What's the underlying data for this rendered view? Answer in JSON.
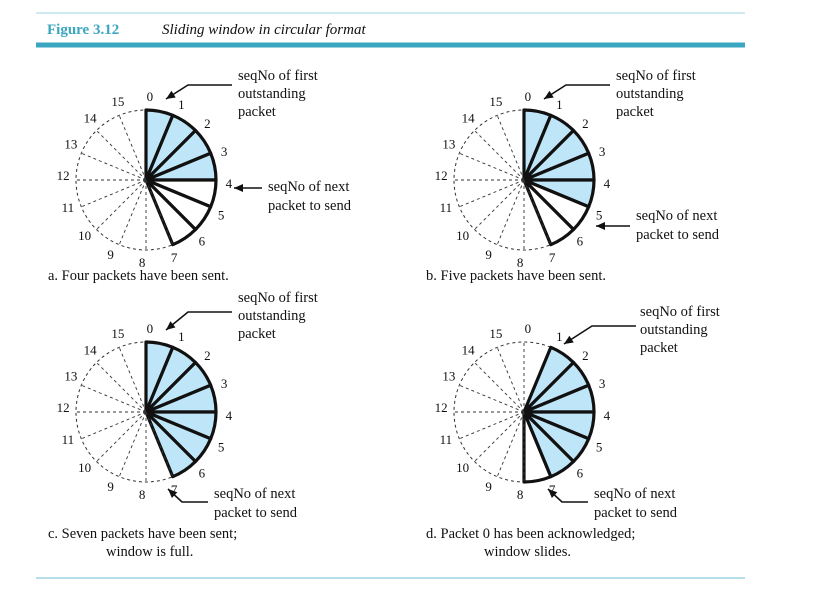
{
  "figure": {
    "label": "Figure 3.12",
    "title": "Sliding window in circular format"
  },
  "colors": {
    "accent": "#3aa6c0",
    "fill": "#bfe6f8"
  },
  "sequence_numbers": [
    "0",
    "1",
    "2",
    "3",
    "4",
    "5",
    "6",
    "7",
    "8",
    "9",
    "10",
    "11",
    "12",
    "13",
    "14",
    "15"
  ],
  "panels": [
    {
      "id": "a",
      "window_start": 0,
      "window_size": 7,
      "acknowledged_free": [],
      "sent_outstanding": [
        0,
        1,
        2,
        3
      ],
      "first_label": [
        "seqNo of first",
        "outstanding",
        "packet"
      ],
      "next_label": [
        "seqNo of next",
        "packet to send"
      ],
      "caption": [
        "a. Four packets have been sent."
      ]
    },
    {
      "id": "b",
      "window_start": 0,
      "window_size": 7,
      "sent_outstanding": [
        0,
        1,
        2,
        3,
        4
      ],
      "first_label": [
        "seqNo of first",
        "outstanding",
        "packet"
      ],
      "next_label": [
        "seqNo of next",
        "packet to send"
      ],
      "caption": [
        "b. Five packets have been sent."
      ]
    },
    {
      "id": "c",
      "window_start": 0,
      "window_size": 7,
      "sent_outstanding": [
        0,
        1,
        2,
        3,
        4,
        5,
        6
      ],
      "first_label": [
        "seqNo of first",
        "outstanding",
        "packet"
      ],
      "next_label": [
        "seqNo of next",
        "packet to send"
      ],
      "caption": [
        "c. Seven packets have been sent;",
        "window is full."
      ]
    },
    {
      "id": "d",
      "window_start": 1,
      "window_size": 7,
      "sent_outstanding": [
        1,
        2,
        3,
        4,
        5,
        6
      ],
      "first_label": [
        "seqNo of first",
        "outstanding",
        "packet"
      ],
      "next_label": [
        "seqNo of next",
        "packet to send"
      ],
      "caption": [
        "d. Packet 0 has been acknowledged;",
        "window slides."
      ]
    }
  ]
}
